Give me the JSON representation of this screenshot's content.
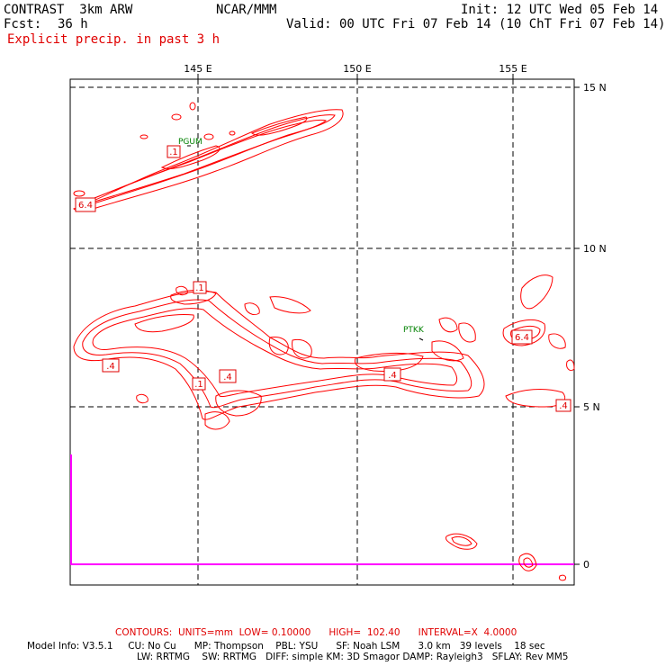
{
  "header": {
    "model": "CONTRAST  3km ARW",
    "center": "NCAR/MMM",
    "init": "Init: 12 UTC Wed 05 Feb 14",
    "fcst_label": "Fcst:",
    "fcst_value": "36 h",
    "valid": "Valid: 00 UTC Fri 07 Feb 14 (10 ChT Fri 07 Feb 14)",
    "field": "Explicit precip. in past 3 h"
  },
  "map": {
    "lon_labels": [
      "145 E",
      "150 E",
      "155 E"
    ],
    "lat_labels": [
      "15 N",
      "10 N",
      "5 N",
      "0"
    ],
    "stations": [
      "PGUM",
      "PTKK"
    ],
    "contour_labels": [
      ".1",
      "6.4",
      ".1",
      ".4",
      ".4",
      ".1",
      ".4",
      "6.4",
      ".4",
      ".4"
    ],
    "colors": {
      "contour": "#ff0000",
      "grid": "#000000",
      "station": "#008000",
      "line": "#ff00ff"
    }
  },
  "footer": {
    "contours_line": "CONTOURS:  UNITS=mm  LOW= 0.10000      HIGH=  102.40      INTERVAL=X  4.0000",
    "info_line1": "Model Info: V3.5.1     CU: No Cu      MP: Thompson    PBL: YSU      SF: Noah LSM      3.0 km   39 levels    18 sec",
    "info_line2": "LW: RRTMG    SW: RRTMG   DIFF: simple KM: 3D Smagor DAMP: Rayleigh3   SFLAY: Rev MM5"
  }
}
